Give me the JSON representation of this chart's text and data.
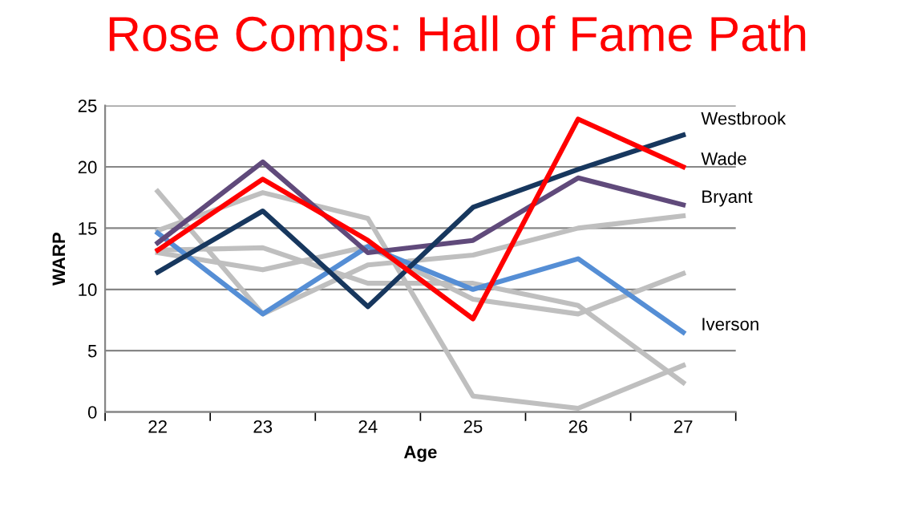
{
  "chart_data": {
    "type": "line",
    "title": "Rose Comps: Hall of Fame Path",
    "xlabel": "Age",
    "ylabel": "WARP",
    "categories": [
      "22",
      "23",
      "24",
      "25",
      "26",
      "27"
    ],
    "series": [
      {
        "color": "#bfbfbf",
        "values": [
          14.8,
          17.9,
          15.8,
          1.3,
          0.3,
          3.8
        ]
      },
      {
        "color": "#bfbfbf",
        "values": [
          18.0,
          8.0,
          12.0,
          12.8,
          15.0,
          16.0
        ]
      },
      {
        "color": "#bfbfbf",
        "values": [
          13.2,
          13.4,
          10.5,
          10.5,
          8.7,
          2.4
        ]
      },
      {
        "color": "#bfbfbf",
        "values": [
          13.0,
          11.6,
          13.5,
          9.2,
          8.0,
          11.3
        ]
      },
      {
        "name": "Iverson",
        "color": "#558ed5",
        "values": [
          14.6,
          8.0,
          13.5,
          10.0,
          12.5,
          6.5
        ]
      },
      {
        "name": "Bryant",
        "color": "#604a7b",
        "values": [
          13.8,
          20.4,
          13.0,
          14.0,
          19.1,
          16.9
        ]
      },
      {
        "name": "Westbrook",
        "color": "#17375e",
        "values": [
          11.4,
          16.4,
          8.6,
          16.7,
          19.8,
          22.6
        ]
      },
      {
        "name": "Wade",
        "color": "#ff0000",
        "values": [
          13.2,
          19.0,
          14.0,
          7.6,
          23.9,
          20.0
        ]
      }
    ],
    "ylim": [
      0,
      25
    ],
    "yticks": [
      0,
      5,
      10,
      15,
      20,
      25
    ],
    "grid": "y",
    "legend": false,
    "marker": "none",
    "line_style": "solid"
  }
}
